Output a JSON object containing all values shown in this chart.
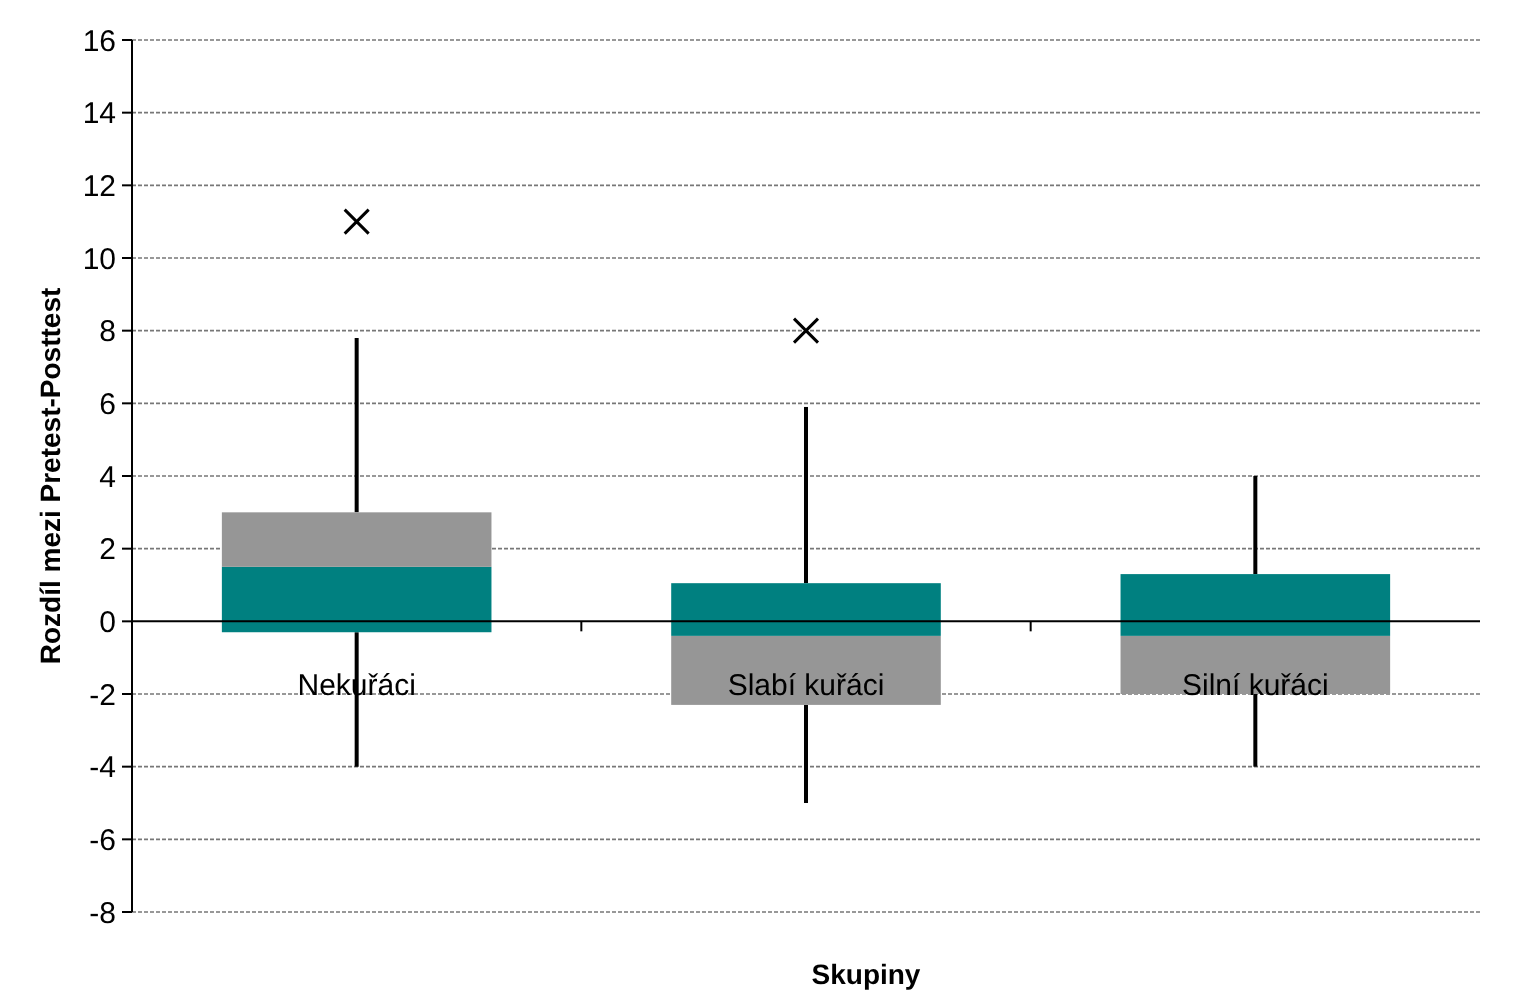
{
  "chart_data": {
    "type": "box",
    "xlabel": "Skupiny",
    "ylabel": "Rozdíl mezi Pretest-Posttest",
    "categories": [
      "Nekuřáci",
      "Slabí kuřáci",
      "Silní kuřáci"
    ],
    "series": [
      {
        "colors": [
          [
            "#008080",
            "#969696"
          ],
          [
            "#969696",
            "#008080"
          ],
          [
            "#969696",
            "#008080"
          ]
        ],
        "boxes": [
          {
            "low": -4,
            "q1": -0.3,
            "median": 1.5,
            "q3": 3,
            "high": 7.8,
            "outliers": [
              11
            ]
          },
          {
            "low": -5,
            "q1": -2.3,
            "median": -0.4,
            "q3": 1.05,
            "high": 5.9,
            "outliers": [
              8
            ]
          },
          {
            "low": -4,
            "q1": -2,
            "median": -0.4,
            "q3": 1.3,
            "high": 4
          }
        ]
      }
    ],
    "ylim": [
      -8,
      16
    ],
    "yticks": [
      -8,
      -6,
      -4,
      -2,
      0,
      2,
      4,
      6,
      8,
      10,
      12,
      14,
      16
    ],
    "grid": "y",
    "marker": "cross"
  }
}
